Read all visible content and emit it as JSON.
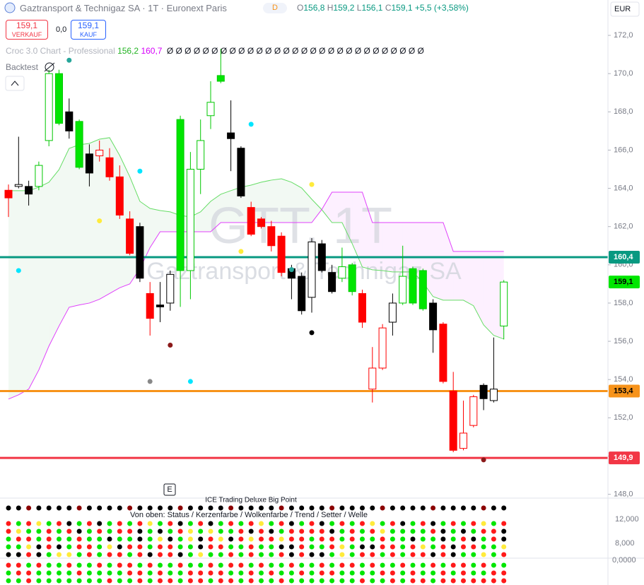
{
  "header": {
    "symbol": "Gaztransport & Technigaz SA · 1T · Euronext Paris",
    "badge": "D",
    "ohlc": [
      {
        "key": "O",
        "value": "156,8"
      },
      {
        "key": "H",
        "value": "159,2"
      },
      {
        "key": "L",
        "value": "156,1"
      },
      {
        "key": "C",
        "value": "159,1"
      }
    ],
    "change": "+5,5 (+3,58%)",
    "sell_price": "159,1",
    "sell_label": "VERKAUF",
    "spread": "0,0",
    "buy_price": "159,1",
    "buy_label": "KAUF",
    "currency": "EUR"
  },
  "indicator": {
    "name": "Croc 3.0 Chart - Professional",
    "value1": "156,2",
    "value2": "160,7",
    "zeros": "Ø Ø Ø Ø Ø Ø Ø Ø Ø Ø Ø Ø Ø Ø Ø Ø Ø Ø Ø Ø Ø Ø Ø Ø Ø Ø Ø Ø Ø",
    "backtest": "Backtest",
    "event_badge": "E"
  },
  "watermark": {
    "ticker": "GTT, 1T",
    "name": "Gaztransport & Technigaz SA"
  },
  "lower_panel": {
    "title": "ICE Trading Deluxe Big Point",
    "subtitle": "Von oben: Status / Kerzenfarbe / Wolkenfarbe / Trend / Setter / Welle",
    "axis_labels": [
      "12,000",
      "8,000",
      "0,0000"
    ]
  },
  "chart_data": {
    "type": "candlestick",
    "categories": [
      null,
      null,
      null,
      null,
      null,
      null,
      null,
      null,
      null,
      null,
      null,
      null,
      null,
      null,
      null,
      null,
      null,
      null,
      null,
      null,
      null,
      null,
      null,
      null,
      null,
      null,
      null,
      null,
      null,
      null,
      null,
      null,
      null,
      null,
      null,
      null,
      null,
      null,
      null,
      null,
      null,
      null,
      null,
      null,
      null,
      null,
      null,
      null,
      null,
      null
    ],
    "open": [
      163.9,
      164.1,
      164.1,
      164.1,
      166.5,
      167.4,
      168.0,
      165.1,
      165.8,
      166.0,
      165.6,
      164.6,
      162.4,
      162.0,
      158.5,
      157.9,
      158.0,
      159.7,
      159.7,
      165.0,
      167.8,
      169.6,
      166.9,
      166.1,
      163.0,
      162.4,
      162.0,
      161.5,
      159.8,
      159.4,
      158.3,
      161.1,
      159.6,
      159.3,
      158.6,
      158.5,
      153.5,
      154.6,
      157.0,
      158.0,
      158.0,
      157.7,
      158.0,
      156.9,
      153.4,
      150.4,
      151.6,
      153.7,
      152.9,
      156.8
    ],
    "high": [
      164.2,
      166.7,
      164.4,
      165.4,
      170.2,
      170.2,
      168.7,
      167.6,
      166.3,
      166.5,
      166.1,
      165.2,
      162.8,
      162.2,
      159.1,
      159.1,
      159.7,
      167.8,
      165.9,
      167.6,
      169.6,
      171.3,
      168.6,
      166.2,
      163.3,
      162.5,
      162.3,
      161.7,
      160.0,
      159.6,
      161.4,
      161.3,
      160.0,
      160.9,
      160.1,
      158.7,
      155.7,
      156.9,
      158.5,
      161.0,
      159.9,
      159.8,
      158.2,
      157.0,
      154.4,
      152.9,
      153.2,
      153.8,
      156.2,
      159.2
    ],
    "low": [
      162.5,
      164.0,
      163.1,
      163.9,
      166.2,
      167.3,
      166.6,
      165.0,
      164.1,
      165.4,
      164.4,
      162.4,
      160.5,
      159.1,
      156.3,
      157.0,
      157.6,
      157.8,
      158.2,
      163.7,
      167.1,
      169.5,
      164.9,
      163.5,
      161.5,
      161.9,
      160.7,
      159.4,
      158.2,
      157.4,
      157.5,
      159.6,
      158.5,
      159.1,
      158.4,
      156.7,
      152.8,
      154.5,
      156.3,
      157.9,
      157.9,
      157.6,
      155.4,
      153.8,
      150.2,
      150.3,
      151.5,
      152.4,
      152.8,
      156.1
    ],
    "close": [
      163.5,
      164.2,
      163.7,
      165.2,
      170.0,
      170.0,
      167.0,
      167.5,
      164.8,
      165.7,
      164.6,
      162.6,
      160.6,
      159.3,
      157.2,
      157.8,
      159.5,
      167.6,
      165.0,
      166.5,
      168.5,
      169.9,
      166.6,
      163.6,
      161.6,
      162.0,
      161.0,
      159.6,
      159.3,
      157.6,
      161.2,
      159.7,
      158.6,
      159.9,
      160.0,
      157.0,
      154.6,
      156.7,
      158.0,
      159.4,
      159.8,
      159.7,
      156.6,
      153.9,
      150.3,
      151.2,
      153.1,
      153.0,
      153.5,
      159.1
    ],
    "fills": [
      "#ff0000",
      "#ffffff",
      "#000000",
      "#ffffff",
      "#ffffff",
      "#00e600",
      "#000000",
      "#00e600",
      "#000000",
      "#ffffff",
      "#ff0000",
      "#ff0000",
      "#ff0000",
      "#000000",
      "#ff0000",
      "#000000",
      "#ffffff",
      "#00e600",
      "#ffffff",
      "#ffffff",
      "#ffffff",
      "#00e600",
      "#000000",
      "#000000",
      "#ff0000",
      "#ff0000",
      "#ff0000",
      "#ff0000",
      "#000000",
      "#000000",
      "#ffffff",
      "#000000",
      "#000000",
      "#ffffff",
      "#00e600",
      "#ff0000",
      "#ffffff",
      "#ffffff",
      "#ffffff",
      "#ffffff",
      "#00e600",
      "#00e600",
      "#000000",
      "#ff0000",
      "#ff0000",
      "#ffffff",
      "#ffffff",
      "#000000",
      "#ffffff",
      "#ffffff"
    ],
    "borders": [
      "#ff0000",
      "#000000",
      "#000000",
      "#00c800",
      "#00c800",
      "#00c800",
      "#000000",
      "#00c800",
      "#000000",
      "#ff0000",
      "#ff0000",
      "#ff0000",
      "#ff0000",
      "#000000",
      "#ff0000",
      "#000000",
      "#000000",
      "#00c800",
      "#00c800",
      "#00c800",
      "#00c800",
      "#00c800",
      "#000000",
      "#000000",
      "#ff0000",
      "#ff0000",
      "#ff0000",
      "#ff0000",
      "#000000",
      "#000000",
      "#000000",
      "#000000",
      "#000000",
      "#00c800",
      "#00c800",
      "#ff0000",
      "#ff0000",
      "#ff0000",
      "#000000",
      "#00c800",
      "#00c800",
      "#00c800",
      "#000000",
      "#ff0000",
      "#ff0000",
      "#ff0000",
      "#ff0000",
      "#000000",
      "#000000",
      "#00c800"
    ],
    "overlays": [
      {
        "color": "#66dd66",
        "values": [
          163.88,
          163.88,
          163.88,
          164.06,
          164.32,
          164.98,
          166.09,
          166.28,
          166.35,
          166.57,
          166.65,
          165.72,
          164.61,
          163.32,
          162.95,
          162.84,
          162.77,
          162.58,
          162.51,
          162.77,
          163.32,
          163.69,
          163.88,
          164.06,
          164.17,
          164.32,
          164.43,
          164.5,
          164.32,
          164.02,
          163.43,
          162.88,
          162.21,
          162.21,
          161.11,
          159.89,
          159.74,
          159.7,
          159.63,
          159.63,
          159.63,
          159.08,
          158.34,
          158.15,
          158.15,
          158.15,
          157.86,
          156.86,
          156.31,
          156.12
        ]
      },
      {
        "color": "#e040fb",
        "values": [
          152.98,
          153.2,
          153.5,
          154.5,
          155.75,
          156.8,
          157.78,
          157.9,
          158.0,
          158.2,
          158.5,
          158.8,
          159.0,
          159.8,
          160.9,
          161.73,
          161.73,
          161.73,
          161.73,
          161.73,
          161.73,
          162.21,
          162.21,
          162.21,
          162.21,
          162.21,
          162.21,
          162.21,
          162.21,
          162.21,
          162.21,
          162.9,
          163.8,
          163.8,
          163.8,
          163.8,
          162.21,
          162.21,
          162.21,
          162.21,
          162.21,
          162.21,
          162.21,
          162.21,
          160.7,
          160.7,
          160.7,
          160.7,
          160.7,
          160.7
        ]
      }
    ],
    "markers": [
      {
        "x": 6,
        "value": 170.7,
        "color": "#26a69a"
      },
      {
        "x": 1,
        "value": 159.7,
        "color": "#00e5ff"
      },
      {
        "x": 9,
        "value": 162.3,
        "color": "#ffeb3b"
      },
      {
        "x": 13,
        "value": 164.9,
        "color": "#00e5ff"
      },
      {
        "x": 14,
        "value": 153.9,
        "color": "#888888"
      },
      {
        "x": 16,
        "value": 155.8,
        "color": "#8b1a1a"
      },
      {
        "x": 18,
        "value": 153.9,
        "color": "#00e5ff"
      },
      {
        "x": 23,
        "value": 160.7,
        "color": "#ffeb3b"
      },
      {
        "x": 24,
        "value": 167.35,
        "color": "#00e5ff"
      },
      {
        "x": 30,
        "value": 164.2,
        "color": "#ffeb3b"
      },
      {
        "x": 30,
        "value": 156.45,
        "color": "#000000"
      },
      {
        "x": 28,
        "value": 159.75,
        "color": "#26a69a"
      },
      {
        "x": 47,
        "value": 149.8,
        "color": "#8b1a1a"
      }
    ],
    "levels": [
      {
        "value": 160.4,
        "label": "160,4",
        "color": "#089981",
        "label_color": "#ffffff"
      },
      {
        "value": 153.4,
        "label": "153,4",
        "color": "#f7931a",
        "label_color": "#000000"
      },
      {
        "value": 149.9,
        "label": "149,9",
        "color": "#f23645",
        "label_color": "#ffffff"
      }
    ],
    "last_price": {
      "value": 159.1,
      "label": "159,1",
      "color": "#00e600",
      "label_color": "#000000"
    },
    "ylim": [
      147.8,
      173.85
    ],
    "yticks": [
      {
        "value": 148,
        "label": "148,0"
      },
      {
        "value": 150,
        "label": "150,0"
      },
      {
        "value": 152,
        "label": "152,0"
      },
      {
        "value": 154,
        "label": "154,0"
      },
      {
        "value": 156,
        "label": "156,0"
      },
      {
        "value": 158,
        "label": "158,0"
      },
      {
        "value": 160,
        "label": "160,0"
      },
      {
        "value": 162,
        "label": "162,0"
      },
      {
        "value": 164,
        "label": "164,0"
      },
      {
        "value": 166,
        "label": "166,0"
      },
      {
        "value": 168,
        "label": "168,0"
      },
      {
        "value": 170,
        "label": "170,0"
      },
      {
        "value": 172,
        "label": "172,0"
      }
    ]
  }
}
